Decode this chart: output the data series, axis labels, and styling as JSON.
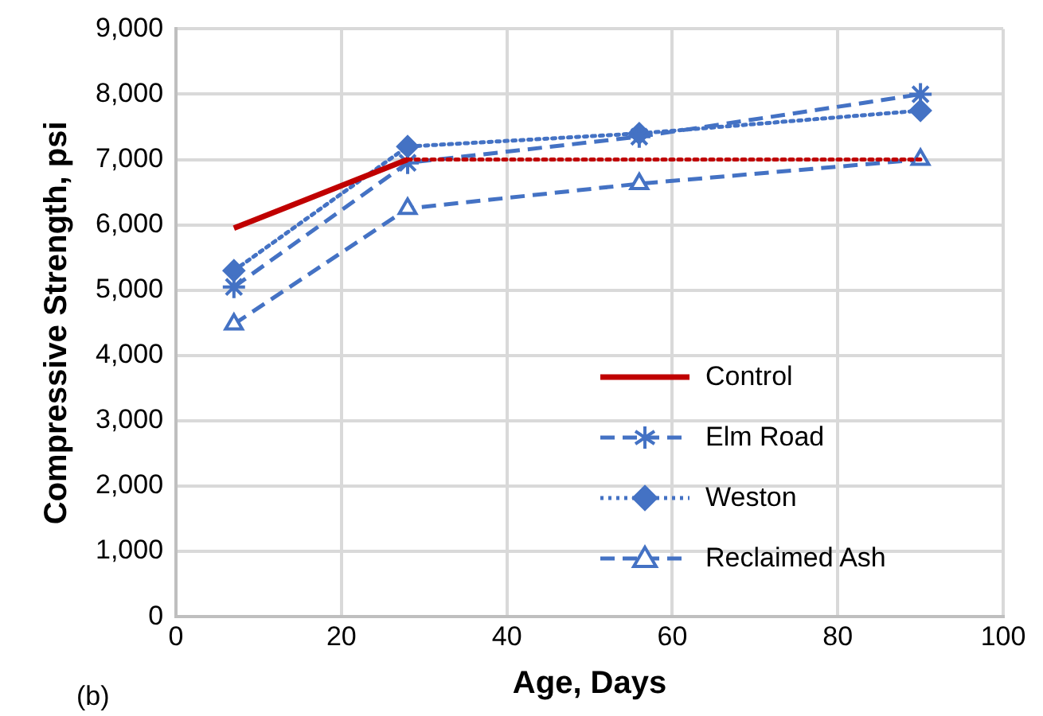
{
  "chart_data": {
    "type": "line",
    "xlabel": "Age, Days",
    "ylabel": "Compressive Strength, psi",
    "xlim": [
      0,
      100
    ],
    "xticks": [
      0,
      20,
      40,
      60,
      80,
      100
    ],
    "ylim": [
      0,
      9000
    ],
    "yticks": [
      {
        "value": 0,
        "label": "0"
      },
      {
        "value": 1000,
        "label": "1,000"
      },
      {
        "value": 2000,
        "label": "2,000"
      },
      {
        "value": 3000,
        "label": "3,000"
      },
      {
        "value": 4000,
        "label": "4,000"
      },
      {
        "value": 5000,
        "label": "5,000"
      },
      {
        "value": 6000,
        "label": "6,000"
      },
      {
        "value": 7000,
        "label": "7,000"
      },
      {
        "value": 8000,
        "label": "8,000"
      },
      {
        "value": 9000,
        "label": "9,000"
      }
    ],
    "grid": true,
    "legend": "bottom right",
    "annotations": [
      "(b)"
    ],
    "series": [
      {
        "name": "Control",
        "color": "#c00000",
        "x": [
          7,
          28
        ],
        "values": [
          5950,
          7000
        ],
        "marker": "none",
        "line_style": "solid"
      },
      {
        "color": "#c00000",
        "x": [
          28,
          90
        ],
        "values": [
          7000,
          7000
        ],
        "marker": "none",
        "line_style": "dotted"
      },
      {
        "name": "Elm Road",
        "color": "#4472c4",
        "x": [
          7,
          28,
          56,
          90
        ],
        "values": [
          5050,
          6950,
          7350,
          8000
        ],
        "marker": "cross",
        "line_style": "dashed"
      },
      {
        "name": "Weston",
        "color": "#4472c4",
        "x": [
          7,
          28,
          56,
          90
        ],
        "values": [
          5300,
          7200,
          7400,
          7750
        ],
        "marker": "diamond",
        "line_style": "dotted"
      },
      {
        "name": "Reclaimed Ash",
        "color": "#4472c4",
        "x": [
          7,
          28,
          56,
          90
        ],
        "values": [
          4480,
          6250,
          6630,
          7000
        ],
        "marker": "triangle",
        "line_style": "dashed"
      }
    ]
  }
}
